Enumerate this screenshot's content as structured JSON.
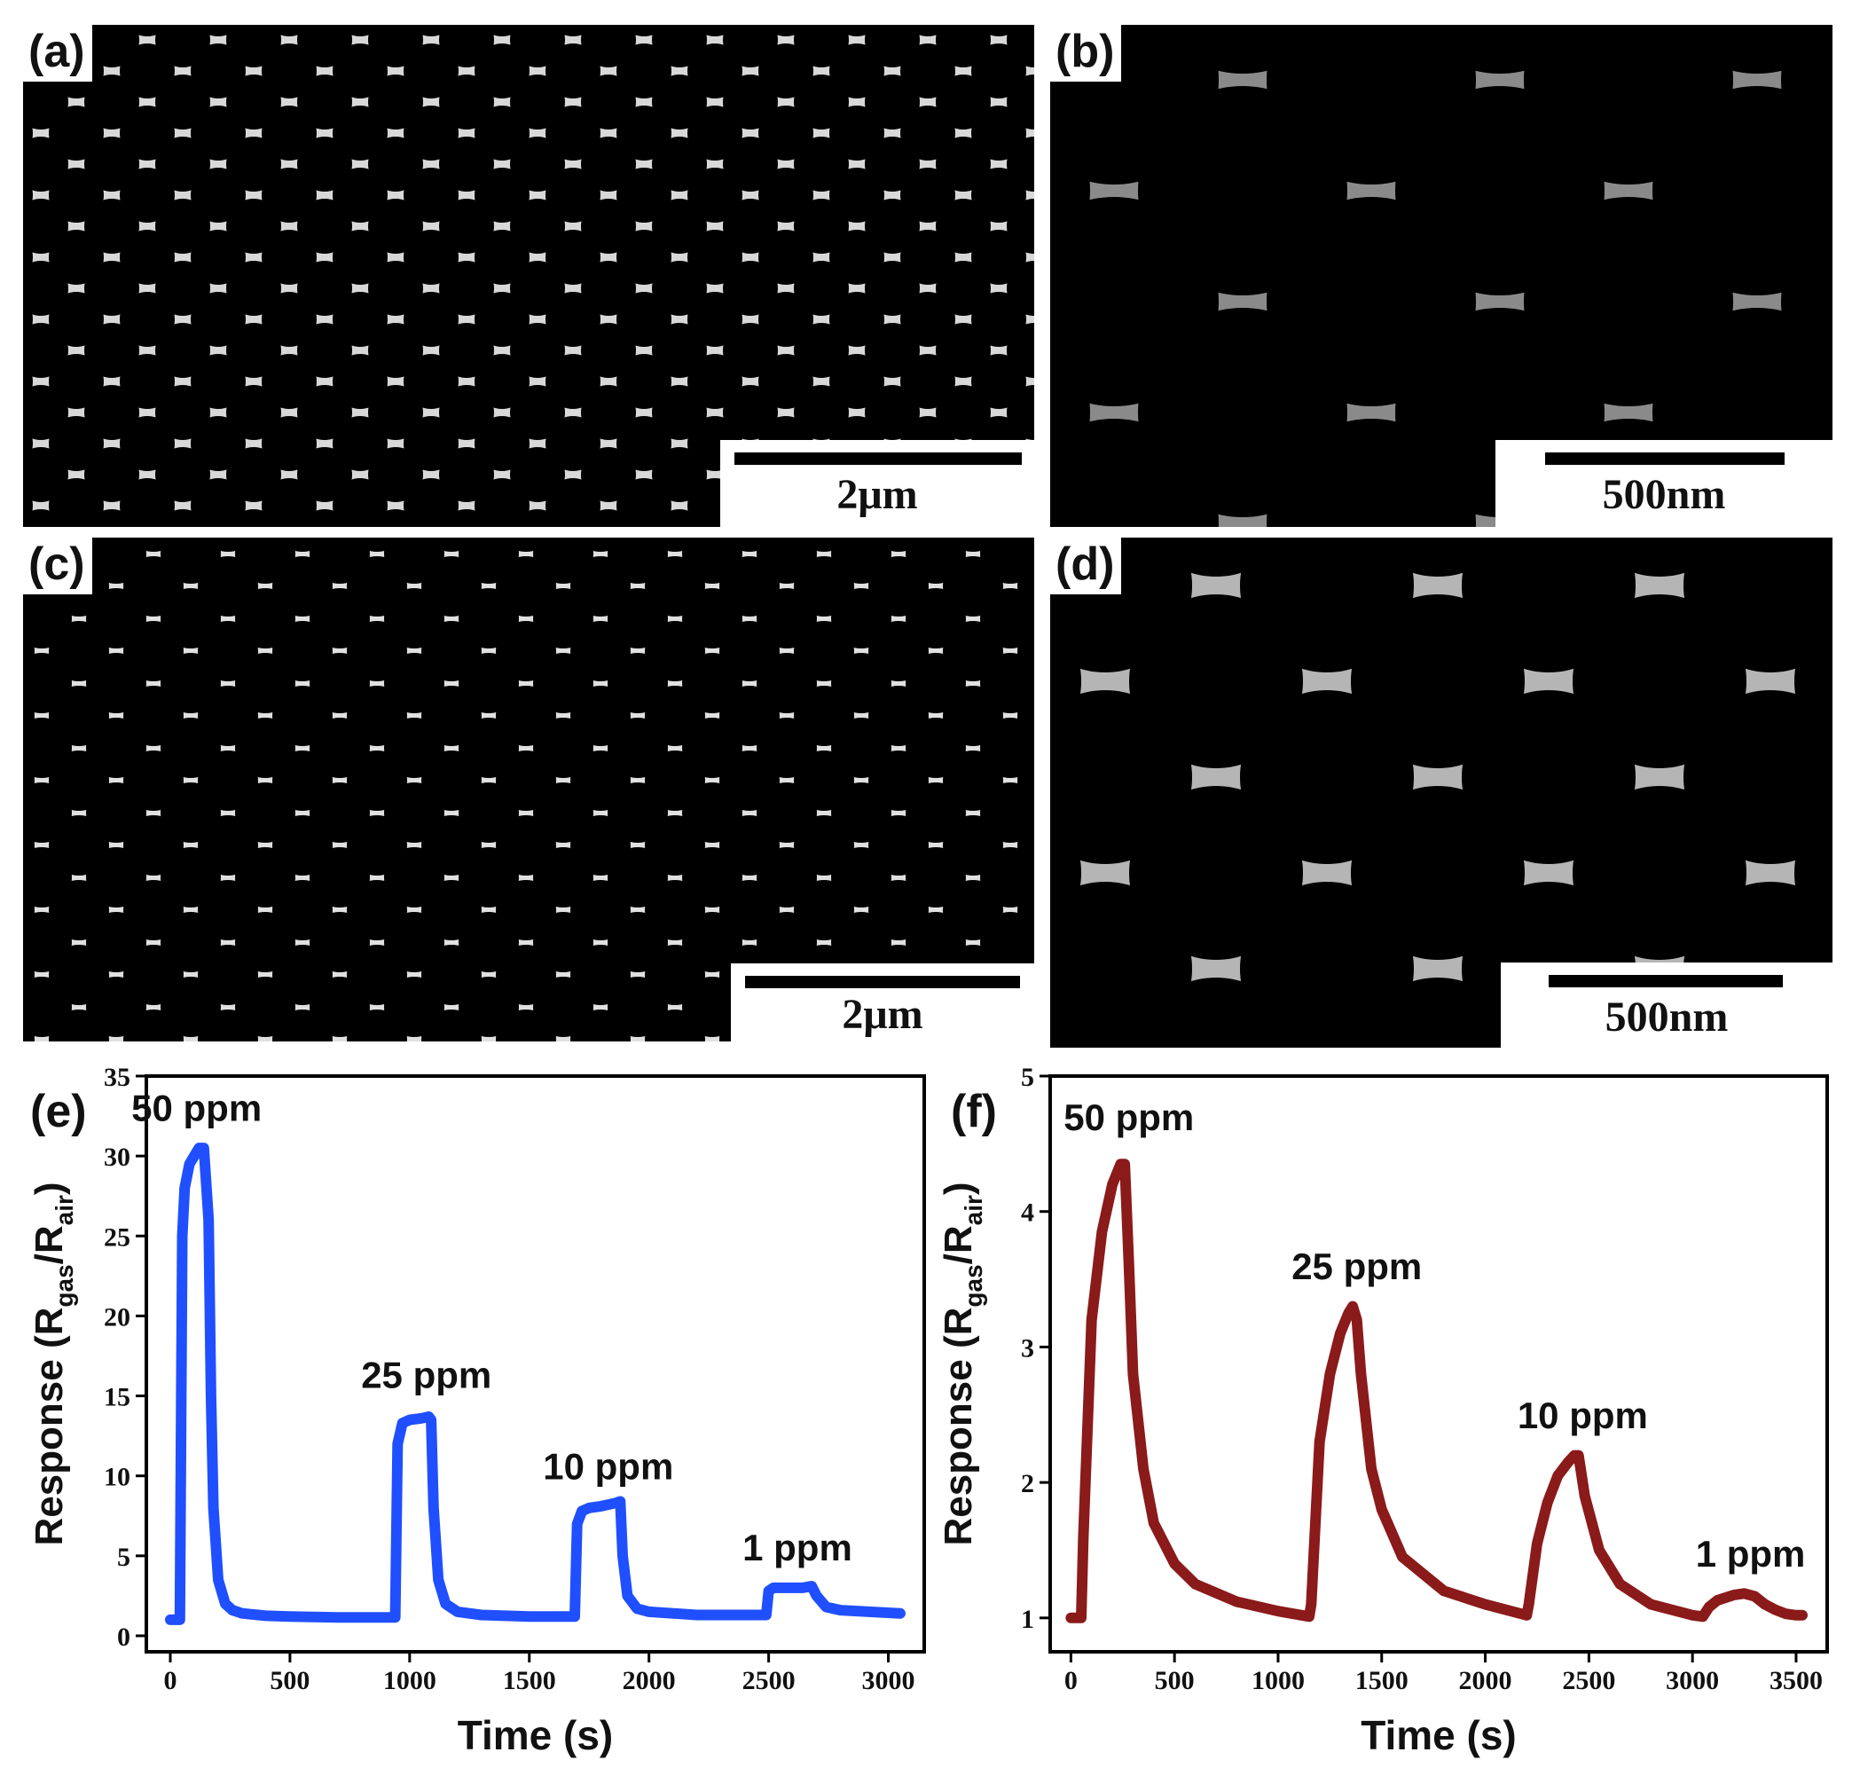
{
  "panels": {
    "a": {
      "label": "(a)",
      "scale": "2μm"
    },
    "b": {
      "label": "(b)",
      "scale": "500nm"
    },
    "c": {
      "label": "(c)",
      "scale": "2μm"
    },
    "d": {
      "label": "(d)",
      "scale": "500nm"
    }
  },
  "chart_data": [
    {
      "panel": "(e)",
      "type": "line",
      "xlabel": "Time (s)",
      "ylabel": "Response (R",
      "ylabel_sub1": "gas",
      "ylabel_mid": "/R",
      "ylabel_sub2": "air",
      "ylabel_end": ")",
      "xlim": [
        -100,
        3150
      ],
      "ylim": [
        -1,
        35
      ],
      "xticks": [
        0,
        500,
        1000,
        1500,
        2000,
        2500,
        3000
      ],
      "yticks": [
        0,
        5,
        10,
        15,
        20,
        25,
        30,
        35
      ],
      "color": "#1f4fff",
      "annotations": [
        {
          "text": "50 ppm",
          "x": 110,
          "y": 32.2
        },
        {
          "text": "25 ppm",
          "x": 1070,
          "y": 15.5
        },
        {
          "text": "10 ppm",
          "x": 1830,
          "y": 9.8
        },
        {
          "text": "1 ppm",
          "x": 2620,
          "y": 4.7
        }
      ],
      "series": [
        {
          "x": [
            0,
            40,
            50,
            60,
            80,
            100,
            120,
            140,
            160,
            170,
            180,
            200,
            230,
            260,
            300,
            400,
            500,
            700,
            900,
            940,
            950,
            970,
            1000,
            1050,
            1080,
            1090,
            1100,
            1120,
            1150,
            1200,
            1300,
            1500,
            1690,
            1700,
            1720,
            1750,
            1800,
            1860,
            1880,
            1890,
            1910,
            1950,
            2000,
            2200,
            2490,
            2500,
            2520,
            2560,
            2640,
            2680,
            2700,
            2740,
            2800,
            3050
          ],
          "y": [
            1,
            1,
            25,
            28,
            29.5,
            30,
            30.5,
            30.5,
            26,
            15,
            8,
            3.5,
            2,
            1.6,
            1.4,
            1.25,
            1.2,
            1.15,
            1.15,
            1.15,
            12,
            13.3,
            13.5,
            13.6,
            13.7,
            13.5,
            8,
            3.5,
            2,
            1.5,
            1.3,
            1.2,
            1.2,
            7,
            7.8,
            8,
            8.1,
            8.3,
            8.4,
            5,
            2.5,
            1.7,
            1.5,
            1.3,
            1.3,
            2.8,
            3,
            3,
            3,
            3.1,
            2.5,
            1.8,
            1.6,
            1.4
          ]
        }
      ]
    },
    {
      "panel": "(f)",
      "type": "line",
      "xlabel": "Time (s)",
      "ylabel": "Response (R",
      "ylabel_sub1": "gas",
      "ylabel_mid": "/R",
      "ylabel_sub2": "air",
      "ylabel_end": ")",
      "xlim": [
        -100,
        3650
      ],
      "ylim": [
        0.75,
        5
      ],
      "xticks": [
        0,
        500,
        1000,
        1500,
        2000,
        2500,
        3000,
        3500
      ],
      "yticks": [
        1,
        2,
        3,
        4,
        5
      ],
      "color": "#8b1a1a",
      "annotations": [
        {
          "text": "50 ppm",
          "x": 280,
          "y": 4.6
        },
        {
          "text": "25 ppm",
          "x": 1380,
          "y": 3.5
        },
        {
          "text": "10 ppm",
          "x": 2470,
          "y": 2.4
        },
        {
          "text": "1 ppm",
          "x": 3280,
          "y": 1.38
        }
      ],
      "series": [
        {
          "x": [
            0,
            50,
            60,
            100,
            150,
            200,
            240,
            260,
            280,
            300,
            350,
            400,
            500,
            600,
            800,
            1000,
            1150,
            1160,
            1200,
            1250,
            1300,
            1340,
            1360,
            1380,
            1400,
            1450,
            1500,
            1600,
            1800,
            2000,
            2200,
            2210,
            2250,
            2300,
            2350,
            2400,
            2430,
            2450,
            2480,
            2550,
            2650,
            2800,
            3000,
            3050,
            3080,
            3120,
            3200,
            3250,
            3300,
            3350,
            3400,
            3450,
            3500,
            3530
          ],
          "y": [
            1,
            1,
            1.6,
            3.2,
            3.85,
            4.2,
            4.35,
            4.35,
            3.6,
            2.8,
            2.1,
            1.7,
            1.4,
            1.25,
            1.12,
            1.05,
            1.01,
            1.1,
            2.3,
            2.8,
            3.1,
            3.25,
            3.3,
            3.2,
            2.8,
            2.1,
            1.8,
            1.45,
            1.2,
            1.1,
            1.02,
            1.1,
            1.55,
            1.85,
            2.05,
            2.15,
            2.2,
            2.2,
            1.9,
            1.5,
            1.25,
            1.1,
            1.02,
            1.01,
            1.08,
            1.13,
            1.17,
            1.18,
            1.16,
            1.1,
            1.06,
            1.03,
            1.02,
            1.02
          ]
        }
      ]
    }
  ]
}
